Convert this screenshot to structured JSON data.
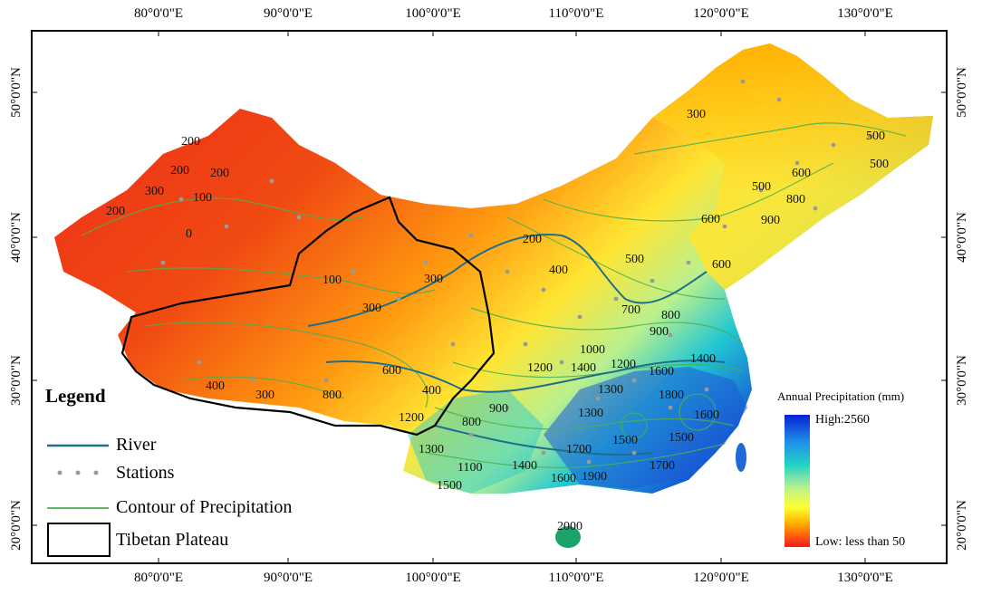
{
  "axes": {
    "top_longitudes": [
      "80°0'0\"E",
      "90°0'0\"E",
      "100°0'0\"E",
      "110°0'0\"E",
      "120°0'0\"E",
      "130°0'0\"E"
    ],
    "bottom_longitudes": [
      "80°0'0\"E",
      "90°0'0\"E",
      "100°0'0\"E",
      "110°0'0\"E",
      "120°0'0\"E",
      "130°0'0\"E"
    ],
    "left_latitudes": [
      "50°0'0\"N",
      "40°0'0\"N",
      "30°0'0\"N",
      "20°0'0\"N"
    ],
    "right_latitudes": [
      "50°0'0\"N",
      "40°0'0\"N",
      "30°0'0\"N",
      "20°0'0\"N"
    ]
  },
  "legend": {
    "title": "Legend",
    "items": [
      {
        "label": "River",
        "symbol": "river-line",
        "color": "#1f6f8b"
      },
      {
        "label": "Stations",
        "symbol": "station-dot",
        "color": "#9a9a9a"
      },
      {
        "label": "Contour of Precipitation",
        "symbol": "contour-line",
        "color": "#4caf50"
      },
      {
        "label": "Tibetan Plateau",
        "symbol": "plateau-box",
        "color": "#000000"
      }
    ]
  },
  "colorbar": {
    "title": "Annual Precipitation (mm)",
    "high_label": "High:2560",
    "low_label": "Low: less than 50",
    "colors": [
      "#0b1fd6",
      "#1e8ee8",
      "#22d3c7",
      "#b9f08f",
      "#ffff33",
      "#ffb000",
      "#ff5a10",
      "#ee1a1a"
    ]
  },
  "contour_labels": [
    "200",
    "200",
    "200",
    "300",
    "100",
    "200",
    "0",
    "100",
    "300",
    "300",
    "400",
    "300",
    "600",
    "800",
    "1200",
    "1300",
    "1500",
    "400",
    "800",
    "900",
    "1200",
    "1100",
    "1400",
    "1600",
    "1900",
    "1400",
    "1300",
    "1700",
    "1500",
    "1600",
    "1800",
    "1600",
    "1500",
    "1700",
    "1400",
    "1300",
    "1200",
    "1000",
    "900",
    "700",
    "800",
    "600",
    "500",
    "400",
    "200",
    "300",
    "500",
    "600",
    "800",
    "900",
    "600",
    "500",
    "500",
    "2000"
  ]
}
